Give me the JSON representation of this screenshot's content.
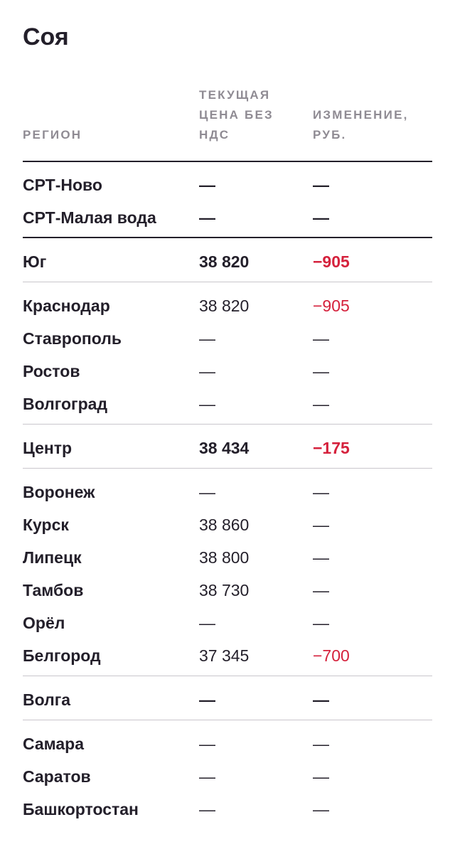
{
  "title": "Соя",
  "header": {
    "region": "РЕГИОН",
    "price": "ТЕКУЩАЯ ЦЕНА БЕЗ НДС",
    "change": "ИЗМЕНЕНИЕ, РУБ."
  },
  "rows": [
    {
      "region": "СРТ-Ново",
      "price": "—",
      "change": "—"
    },
    {
      "region": "СРТ-Малая вода",
      "price": "—",
      "change": "—"
    },
    {
      "region": "Юг",
      "price": "38 820",
      "change": "−905"
    },
    {
      "region": "Краснодар",
      "price": "38 820",
      "change": "−905"
    },
    {
      "region": "Ставрополь",
      "price": "—",
      "change": "—"
    },
    {
      "region": "Ростов",
      "price": "—",
      "change": "—"
    },
    {
      "region": "Волгоград",
      "price": "—",
      "change": "—"
    },
    {
      "region": "Центр",
      "price": "38 434",
      "change": "−175"
    },
    {
      "region": "Воронеж",
      "price": "—",
      "change": "—"
    },
    {
      "region": "Курск",
      "price": "38 860",
      "change": "—"
    },
    {
      "region": "Липецк",
      "price": "38 800",
      "change": "—"
    },
    {
      "region": "Тамбов",
      "price": "38 730",
      "change": "—"
    },
    {
      "region": "Орёл",
      "price": "—",
      "change": "—"
    },
    {
      "region": "Белгород",
      "price": "37 345",
      "change": "−700"
    },
    {
      "region": "Волга",
      "price": "—",
      "change": "—"
    },
    {
      "region": "Самара",
      "price": "—",
      "change": "—"
    },
    {
      "region": "Саратов",
      "price": "—",
      "change": "—"
    },
    {
      "region": "Башкортостан",
      "price": "—",
      "change": "—"
    }
  ],
  "colors": {
    "text": "#231f2a",
    "header": "#8f8b93",
    "negative": "#d5213c",
    "rule_light": "#c9c6cc"
  }
}
